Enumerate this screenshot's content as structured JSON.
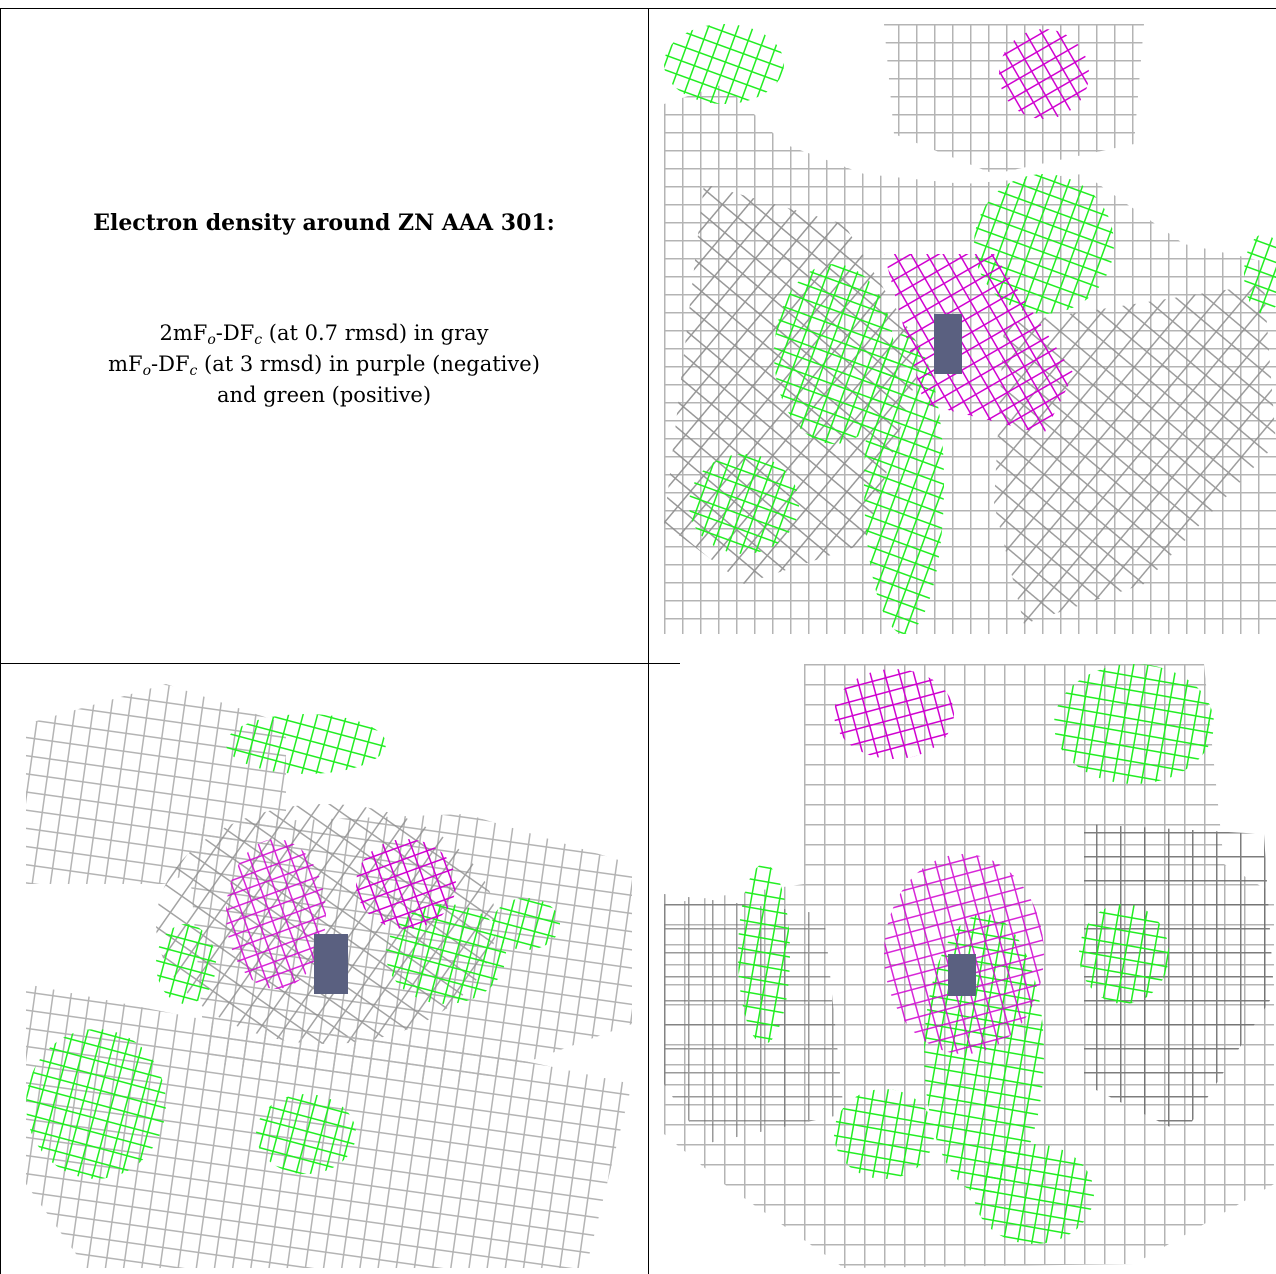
{
  "caption": {
    "title": "Electron density around ZN AAA 301:",
    "line1": {
      "main_a": "2mF",
      "sub_a": "o",
      "main_b": "-DF",
      "sub_b": "c",
      "rest": " (at 0.7 rmsd) in gray"
    },
    "line2": {
      "main_a": "mF",
      "sub_a": "o",
      "main_b": "-DF",
      "sub_b": "c",
      "rest": " (at 3 rmsd) in purple (negative)"
    },
    "line3": "and green (positive)"
  },
  "colors": {
    "gray_mesh": "#b4b4b4",
    "dark_mesh": "#6e6e6e",
    "negative_mesh": "#d000d0",
    "positive_mesh": "#22ee22",
    "zinc_atom": "#5a6080"
  },
  "views": [
    {
      "name": "view-top-right"
    },
    {
      "name": "view-bottom-left"
    },
    {
      "name": "view-bottom-right"
    }
  ]
}
